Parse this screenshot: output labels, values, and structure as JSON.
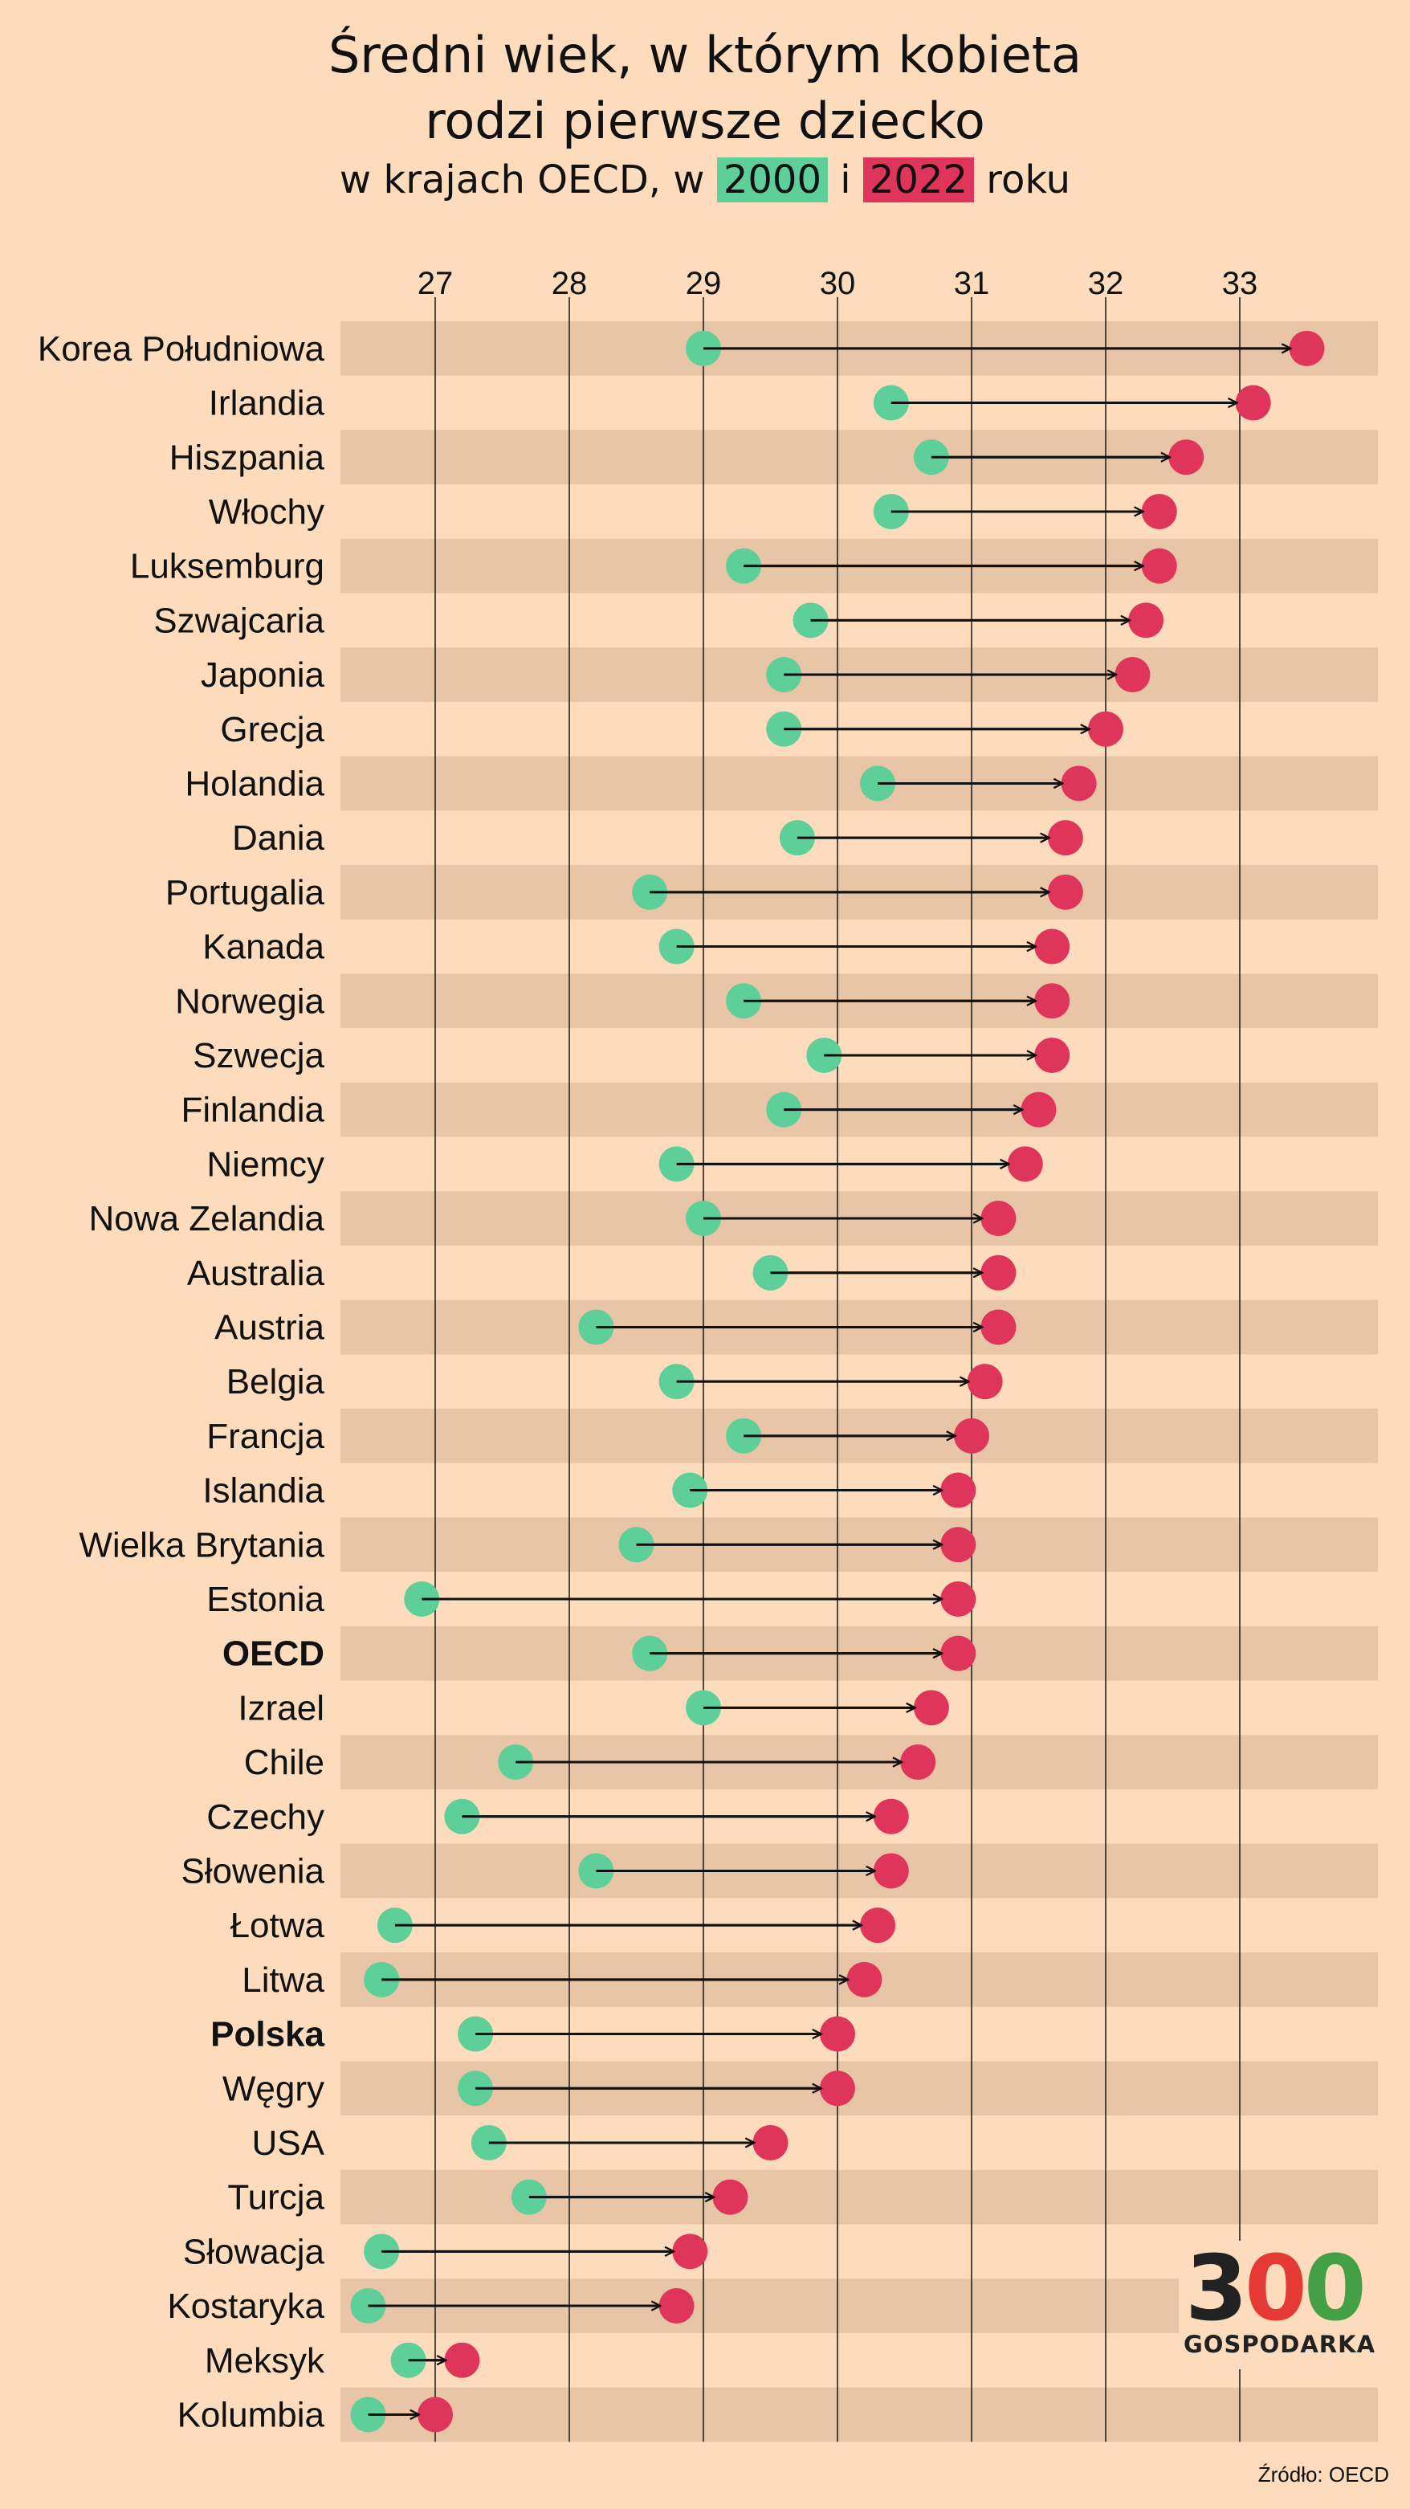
{
  "header": {
    "title_line1": "Średni wiek, w którym kobieta",
    "title_line2": "rodzi pierwsze dziecko",
    "subtitle_prefix": "w krajach OECD, w",
    "subtitle_conj": "i",
    "subtitle_suffix": "roku",
    "year_a": "2000",
    "year_b": "2022"
  },
  "colors": {
    "background": "#fcdcbc",
    "stripe": "#e8c5a7",
    "color_2000": "#5fcf99",
    "color_2022": "#e0355a",
    "arrow": "#111111"
  },
  "logo": {
    "number": "300",
    "name": "GOSPODARKA"
  },
  "source": "Źródło: OECD",
  "chart_data": {
    "type": "dumbbell",
    "xlim": [
      26.3,
      34.0
    ],
    "xticks": [
      27,
      28,
      29,
      30,
      31,
      32,
      33
    ],
    "grid": true,
    "series": [
      {
        "name": "2000",
        "color": "#5fcf99"
      },
      {
        "name": "2022",
        "color": "#e0355a"
      }
    ],
    "rows": [
      {
        "country": "Korea Południowa",
        "v2000": 29.0,
        "v2022": 33.5,
        "bold": false
      },
      {
        "country": "Irlandia",
        "v2000": 30.4,
        "v2022": 33.1,
        "bold": false
      },
      {
        "country": "Hiszpania",
        "v2000": 30.7,
        "v2022": 32.6,
        "bold": false
      },
      {
        "country": "Włochy",
        "v2000": 30.4,
        "v2022": 32.4,
        "bold": false
      },
      {
        "country": "Luksemburg",
        "v2000": 29.3,
        "v2022": 32.4,
        "bold": false
      },
      {
        "country": "Szwajcaria",
        "v2000": 29.8,
        "v2022": 32.3,
        "bold": false
      },
      {
        "country": "Japonia",
        "v2000": 29.6,
        "v2022": 32.2,
        "bold": false
      },
      {
        "country": "Grecja",
        "v2000": 29.6,
        "v2022": 32.0,
        "bold": false
      },
      {
        "country": "Holandia",
        "v2000": 30.3,
        "v2022": 31.8,
        "bold": false
      },
      {
        "country": "Dania",
        "v2000": 29.7,
        "v2022": 31.7,
        "bold": false
      },
      {
        "country": "Portugalia",
        "v2000": 28.6,
        "v2022": 31.7,
        "bold": false
      },
      {
        "country": "Kanada",
        "v2000": 28.8,
        "v2022": 31.6,
        "bold": false
      },
      {
        "country": "Norwegia",
        "v2000": 29.3,
        "v2022": 31.6,
        "bold": false
      },
      {
        "country": "Szwecja",
        "v2000": 29.9,
        "v2022": 31.6,
        "bold": false
      },
      {
        "country": "Finlandia",
        "v2000": 29.6,
        "v2022": 31.5,
        "bold": false
      },
      {
        "country": "Niemcy",
        "v2000": 28.8,
        "v2022": 31.4,
        "bold": false
      },
      {
        "country": "Nowa Zelandia",
        "v2000": 29.0,
        "v2022": 31.2,
        "bold": false
      },
      {
        "country": "Australia",
        "v2000": 29.5,
        "v2022": 31.2,
        "bold": false
      },
      {
        "country": "Austria",
        "v2000": 28.2,
        "v2022": 31.2,
        "bold": false
      },
      {
        "country": "Belgia",
        "v2000": 28.8,
        "v2022": 31.1,
        "bold": false
      },
      {
        "country": "Francja",
        "v2000": 29.3,
        "v2022": 31.0,
        "bold": false
      },
      {
        "country": "Islandia",
        "v2000": 28.9,
        "v2022": 30.9,
        "bold": false
      },
      {
        "country": "Wielka Brytania",
        "v2000": 28.5,
        "v2022": 30.9,
        "bold": false
      },
      {
        "country": "Estonia",
        "v2000": 26.9,
        "v2022": 30.9,
        "bold": false
      },
      {
        "country": "OECD",
        "v2000": 28.6,
        "v2022": 30.9,
        "bold": true
      },
      {
        "country": "Izrael",
        "v2000": 29.0,
        "v2022": 30.7,
        "bold": false
      },
      {
        "country": "Chile",
        "v2000": 27.6,
        "v2022": 30.6,
        "bold": false
      },
      {
        "country": "Czechy",
        "v2000": 27.2,
        "v2022": 30.4,
        "bold": false
      },
      {
        "country": "Słowenia",
        "v2000": 28.2,
        "v2022": 30.4,
        "bold": false
      },
      {
        "country": "Łotwa",
        "v2000": 26.7,
        "v2022": 30.3,
        "bold": false
      },
      {
        "country": "Litwa",
        "v2000": 26.6,
        "v2022": 30.2,
        "bold": false
      },
      {
        "country": "Polska",
        "v2000": 27.3,
        "v2022": 30.0,
        "bold": true
      },
      {
        "country": "Węgry",
        "v2000": 27.3,
        "v2022": 30.0,
        "bold": false
      },
      {
        "country": "USA",
        "v2000": 27.4,
        "v2022": 29.5,
        "bold": false
      },
      {
        "country": "Turcja",
        "v2000": 27.7,
        "v2022": 29.2,
        "bold": false
      },
      {
        "country": "Słowacja",
        "v2000": 26.6,
        "v2022": 28.9,
        "bold": false
      },
      {
        "country": "Kostaryka",
        "v2000": 26.5,
        "v2022": 28.8,
        "bold": false
      },
      {
        "country": "Meksyk",
        "v2000": 26.8,
        "v2022": 27.2,
        "bold": false
      },
      {
        "country": "Kolumbia",
        "v2000": 26.5,
        "v2022": 27.0,
        "bold": false
      }
    ]
  }
}
